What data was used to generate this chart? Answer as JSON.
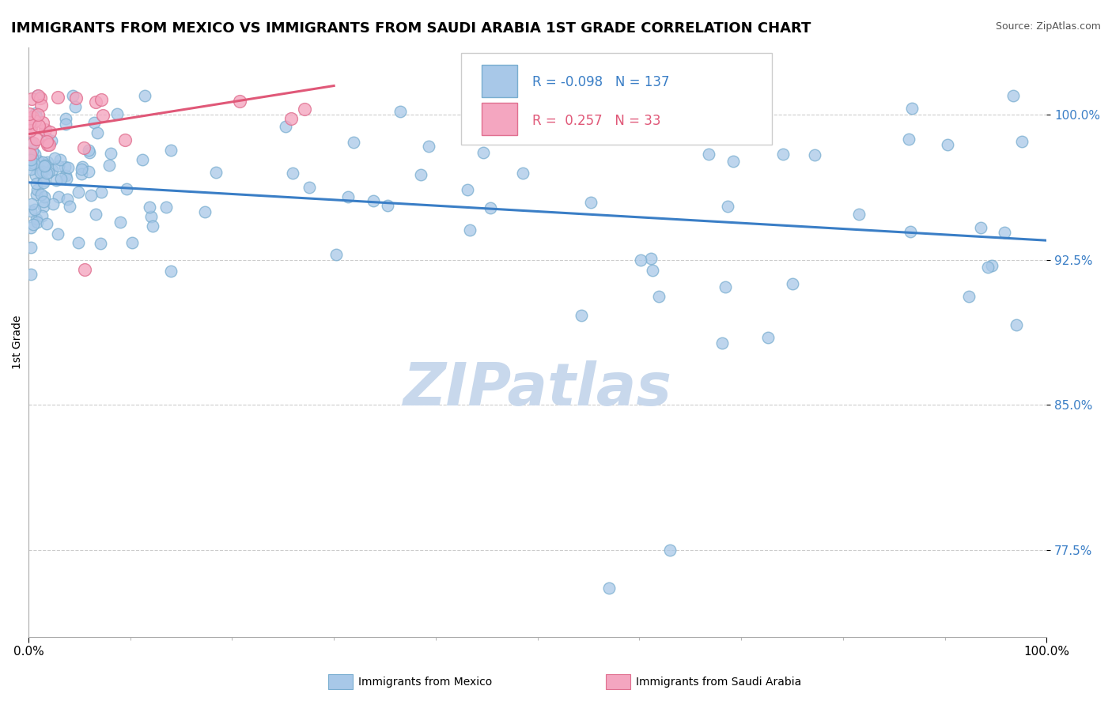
{
  "title": "IMMIGRANTS FROM MEXICO VS IMMIGRANTS FROM SAUDI ARABIA 1ST GRADE CORRELATION CHART",
  "source": "Source: ZipAtlas.com",
  "legend1": "Immigrants from Mexico",
  "legend2": "Immigrants from Saudi Arabia",
  "ylabel": "1st Grade",
  "x_min": 0.0,
  "x_max": 100.0,
  "y_min": 73.0,
  "y_max": 103.5,
  "yticks": [
    77.5,
    85.0,
    92.5,
    100.0
  ],
  "ytick_labels": [
    "77.5%",
    "85.0%",
    "92.5%",
    "100.0%"
  ],
  "R_blue": -0.098,
  "N_blue": 137,
  "R_pink": 0.257,
  "N_pink": 33,
  "blue_color": "#A8C8E8",
  "blue_edge_color": "#7AAED0",
  "blue_line_color": "#3A7EC6",
  "pink_color": "#F4A6C0",
  "pink_edge_color": "#E07090",
  "pink_line_color": "#E05878",
  "watermark": "ZIPatlas",
  "watermark_color": "#C8D8EC",
  "background_color": "#FFFFFF",
  "blue_trend_x0": 0.0,
  "blue_trend_x1": 100.0,
  "blue_trend_y0": 96.5,
  "blue_trend_y1": 93.5,
  "pink_trend_x0": 0.0,
  "pink_trend_x1": 30.0,
  "pink_trend_y0": 99.0,
  "pink_trend_y1": 101.5
}
